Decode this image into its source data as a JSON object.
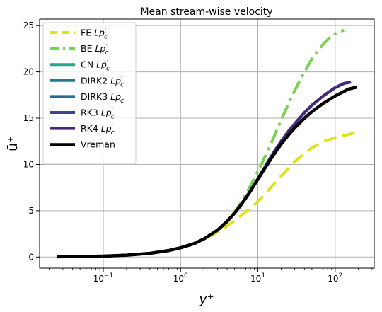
{
  "chart_data": {
    "type": "line",
    "title": "Mean stream-wise velocity",
    "xlabel": "y⁺",
    "ylabel": "ū⁺",
    "xscale": "log",
    "xlim": [
      0.015,
      320
    ],
    "ylim": [
      -1.2,
      25.7
    ],
    "xticks": [
      {
        "value": 0.1,
        "base": "10",
        "exp": "−1"
      },
      {
        "value": 1,
        "base": "10",
        "exp": "0"
      },
      {
        "value": 10,
        "base": "10",
        "exp": "1"
      },
      {
        "value": 100,
        "base": "10",
        "exp": "2"
      }
    ],
    "yticks": [
      0,
      5,
      10,
      15,
      20,
      25
    ],
    "grid": true,
    "legend_position": "top-left",
    "series": [
      {
        "name": "FE Lp′c",
        "label_main": "FE ",
        "label_sym": "Lp",
        "label_prime": "′",
        "label_sub": "c",
        "color": "#dde318",
        "dash": "dashed",
        "x": [
          0.025,
          0.05,
          0.1,
          0.2,
          0.4,
          0.7,
          1,
          1.5,
          2,
          3,
          4,
          5,
          6,
          7,
          8,
          9,
          10,
          11,
          12,
          14,
          16,
          20,
          25,
          30,
          40,
          50,
          70,
          100,
          150,
          220
        ],
        "y": [
          0.03,
          0.05,
          0.1,
          0.2,
          0.4,
          0.7,
          1.0,
          1.45,
          1.9,
          2.7,
          3.35,
          3.95,
          4.45,
          4.9,
          5.3,
          5.65,
          6.0,
          6.35,
          6.7,
          7.3,
          7.85,
          8.75,
          9.6,
          10.3,
          11.2,
          11.8,
          12.45,
          12.9,
          13.25,
          13.6
        ]
      },
      {
        "name": "BE Lp′c",
        "label_main": "BE ",
        "label_sym": "Lp",
        "label_prime": "′",
        "label_sub": "c",
        "color": "#7ad151",
        "dash": "dashdot",
        "x": [
          0.025,
          0.05,
          0.1,
          0.2,
          0.4,
          0.7,
          1,
          1.5,
          2,
          3,
          4,
          5,
          6,
          7,
          8,
          9,
          10,
          11,
          12,
          14,
          16,
          20,
          25,
          30,
          40,
          50,
          70,
          90,
          110,
          130
        ],
        "y": [
          0.03,
          0.05,
          0.1,
          0.2,
          0.4,
          0.7,
          1.0,
          1.45,
          1.95,
          2.9,
          3.9,
          4.85,
          5.85,
          6.8,
          7.7,
          8.5,
          9.25,
          9.95,
          10.6,
          11.8,
          12.9,
          14.8,
          16.6,
          18.0,
          20.0,
          21.4,
          23.0,
          23.9,
          24.3,
          24.5
        ]
      },
      {
        "name": "CN Lp′c",
        "label_main": "CN ",
        "label_sym": "Lp",
        "label_prime": "′",
        "label_sub": "c",
        "color": "#22a884",
        "dash": "solid",
        "x": [
          0.025,
          0.05,
          0.1,
          0.2,
          0.4,
          0.7,
          1,
          1.5,
          2,
          3,
          4,
          5,
          6,
          7,
          8,
          9,
          10,
          11,
          12,
          14,
          16,
          20,
          25,
          30,
          40,
          50,
          70,
          100,
          130,
          160
        ],
        "y": [
          0.03,
          0.05,
          0.1,
          0.2,
          0.4,
          0.7,
          1.0,
          1.45,
          1.95,
          2.9,
          3.85,
          4.75,
          5.6,
          6.4,
          7.15,
          7.85,
          8.45,
          9.05,
          9.55,
          10.5,
          11.3,
          12.5,
          13.6,
          14.4,
          15.6,
          16.4,
          17.4,
          18.3,
          18.75,
          18.9
        ]
      },
      {
        "name": "DIRK2 Lp′c",
        "label_main": "DIRK2 ",
        "label_sym": "Lp",
        "label_prime": "′",
        "label_sub": "c",
        "color": "#2a788e",
        "dash": "solid",
        "x": [
          0.025,
          0.05,
          0.1,
          0.2,
          0.4,
          0.7,
          1,
          1.5,
          2,
          3,
          4,
          5,
          6,
          7,
          8,
          9,
          10,
          11,
          12,
          14,
          16,
          20,
          25,
          30,
          40,
          50,
          70,
          100,
          130,
          160
        ],
        "y": [
          0.03,
          0.05,
          0.1,
          0.2,
          0.4,
          0.7,
          1.0,
          1.45,
          1.95,
          2.9,
          3.85,
          4.75,
          5.6,
          6.4,
          7.15,
          7.85,
          8.45,
          9.05,
          9.55,
          10.5,
          11.3,
          12.5,
          13.6,
          14.4,
          15.6,
          16.4,
          17.4,
          18.3,
          18.75,
          18.9
        ]
      },
      {
        "name": "DIRK3 Lp′c",
        "label_main": "DIRK3 ",
        "label_sym": "Lp",
        "label_prime": "′",
        "label_sub": "c",
        "color": "#31688e",
        "dash": "solid",
        "x": [
          0.025,
          0.05,
          0.1,
          0.2,
          0.4,
          0.7,
          1,
          1.5,
          2,
          3,
          4,
          5,
          6,
          7,
          8,
          9,
          10,
          11,
          12,
          14,
          16,
          20,
          25,
          30,
          40,
          50,
          70,
          100,
          130,
          160
        ],
        "y": [
          0.03,
          0.05,
          0.1,
          0.2,
          0.4,
          0.7,
          1.0,
          1.45,
          1.95,
          2.9,
          3.85,
          4.75,
          5.6,
          6.4,
          7.15,
          7.85,
          8.45,
          9.05,
          9.55,
          10.5,
          11.3,
          12.5,
          13.6,
          14.4,
          15.6,
          16.4,
          17.4,
          18.3,
          18.75,
          18.9
        ]
      },
      {
        "name": "RK3 Lp′c",
        "label_main": "RK3 ",
        "label_sym": "Lp",
        "label_prime": "′",
        "label_sub": "c",
        "color": "#414487",
        "dash": "solid",
        "x": [
          0.025,
          0.05,
          0.1,
          0.2,
          0.4,
          0.7,
          1,
          1.5,
          2,
          3,
          4,
          5,
          6,
          7,
          8,
          9,
          10,
          11,
          12,
          14,
          16,
          20,
          25,
          30,
          40,
          50,
          70,
          100,
          130,
          160
        ],
        "y": [
          0.03,
          0.05,
          0.1,
          0.2,
          0.4,
          0.7,
          1.0,
          1.45,
          1.95,
          2.9,
          3.85,
          4.75,
          5.6,
          6.4,
          7.15,
          7.85,
          8.45,
          9.05,
          9.55,
          10.5,
          11.3,
          12.5,
          13.6,
          14.4,
          15.6,
          16.4,
          17.4,
          18.3,
          18.75,
          18.9
        ]
      },
      {
        "name": "RK4 Lp′c",
        "label_main": "RK4 ",
        "label_sym": "Lp",
        "label_prime": "′",
        "label_sub": "c",
        "color": "#482878",
        "dash": "solid",
        "x": [
          0.025,
          0.05,
          0.1,
          0.2,
          0.4,
          0.7,
          1,
          1.5,
          2,
          3,
          4,
          5,
          6,
          7,
          8,
          9,
          10,
          11,
          12,
          14,
          16,
          20,
          25,
          30,
          40,
          50,
          70,
          100,
          130,
          160
        ],
        "y": [
          0.03,
          0.05,
          0.1,
          0.2,
          0.4,
          0.7,
          1.0,
          1.45,
          1.95,
          2.9,
          3.85,
          4.75,
          5.6,
          6.4,
          7.15,
          7.85,
          8.45,
          9.05,
          9.55,
          10.5,
          11.3,
          12.5,
          13.6,
          14.4,
          15.6,
          16.4,
          17.4,
          18.3,
          18.75,
          18.9
        ]
      },
      {
        "name": "Vreman",
        "label_main": "Vreman",
        "label_sym": "",
        "label_prime": "",
        "label_sub": "",
        "color": "#000000",
        "dash": "solid",
        "x": [
          0.025,
          0.05,
          0.1,
          0.2,
          0.4,
          0.7,
          1,
          1.5,
          2,
          3,
          4,
          5,
          6,
          7,
          8,
          9,
          10,
          11,
          12,
          14,
          16,
          20,
          25,
          30,
          40,
          50,
          70,
          100,
          150,
          190
        ],
        "y": [
          0.03,
          0.05,
          0.1,
          0.2,
          0.4,
          0.7,
          1.0,
          1.45,
          1.95,
          2.9,
          3.85,
          4.75,
          5.6,
          6.4,
          7.1,
          7.8,
          8.4,
          8.95,
          9.45,
          10.3,
          11.05,
          12.2,
          13.2,
          13.95,
          15.0,
          15.7,
          16.6,
          17.4,
          18.15,
          18.35
        ]
      }
    ]
  }
}
